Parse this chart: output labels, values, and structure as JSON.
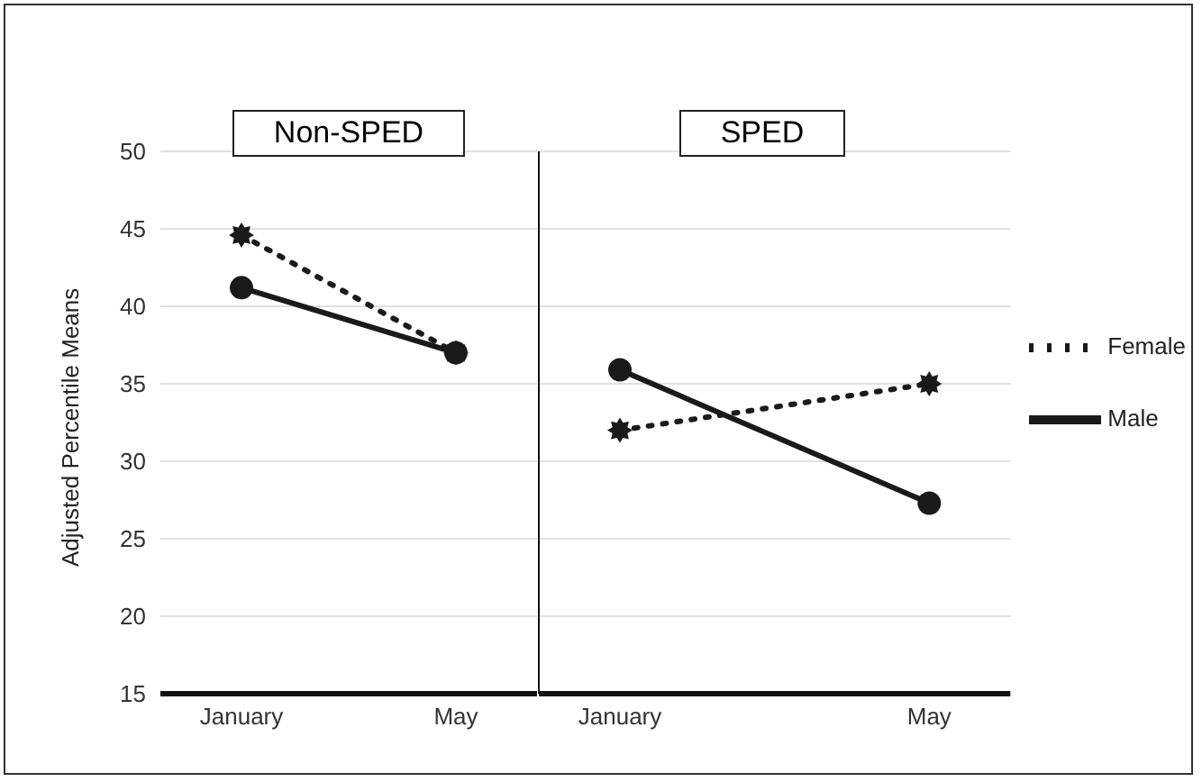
{
  "chart_data": [
    {
      "type": "line",
      "title": "Non-SPED",
      "ylabel": "Adjusted Percentile Means",
      "categories": [
        "January",
        "May"
      ],
      "ylim": [
        15,
        50
      ],
      "yticks": [
        15,
        20,
        25,
        30,
        35,
        40,
        45,
        50
      ],
      "grid": "y",
      "legend": false,
      "series": [
        {
          "color": "#1a1a1a",
          "values": [
            44.6,
            37.0
          ],
          "line_style": "dotted",
          "marker": "star"
        },
        {
          "color": "#1a1a1a",
          "values": [
            41.2,
            37.0
          ],
          "line_style": "solid",
          "marker": "circle"
        }
      ]
    },
    {
      "type": "line",
      "title": "SPED",
      "categories": [
        "January",
        "May"
      ],
      "ylim": [
        15,
        50
      ],
      "yticks": [
        15,
        20,
        25,
        30,
        35,
        40,
        45,
        50
      ],
      "grid": "y",
      "legend": "right",
      "tick_labels": "x",
      "series": [
        {
          "name": "Female",
          "color": "#1a1a1a",
          "values": [
            32.0,
            35.0
          ],
          "line_style": "dotted",
          "marker": "star"
        },
        {
          "name": "Male",
          "color": "#1a1a1a",
          "values": [
            35.9,
            27.3
          ],
          "line_style": "solid",
          "marker": "circle"
        }
      ]
    }
  ]
}
